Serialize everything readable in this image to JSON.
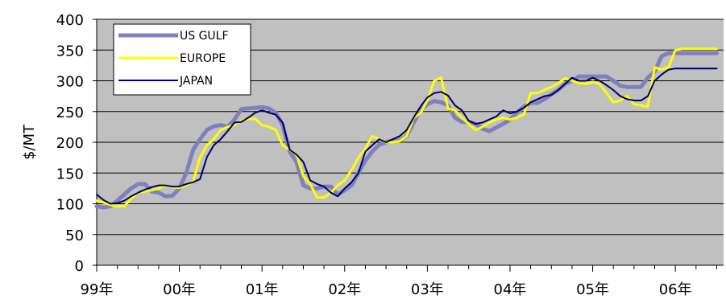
{
  "chart_data": {
    "type": "line",
    "title": "",
    "xlabel": "",
    "ylabel": "$/MT",
    "ylim": [
      0,
      400
    ],
    "yticks": [
      0,
      50,
      100,
      150,
      200,
      250,
      300,
      350,
      400
    ],
    "xlim": [
      0,
      91
    ],
    "xticks": [
      {
        "label": "99年",
        "month": 0
      },
      {
        "label": "00年",
        "month": 12
      },
      {
        "label": "01年",
        "month": 24
      },
      {
        "label": "02年",
        "month": 36
      },
      {
        "label": "03年",
        "month": 48
      },
      {
        "label": "04年",
        "month": 60
      },
      {
        "label": "05年",
        "month": 72
      },
      {
        "label": "06年",
        "month": 84
      }
    ],
    "grid": "horizontal",
    "plot_background": "#c0c0c0",
    "legend_position": "top-left",
    "series": [
      {
        "name": "US GULF",
        "color": "#8080c0",
        "width": 5,
        "x": [
          0,
          1,
          2,
          3,
          4,
          5,
          6,
          7,
          8,
          9,
          10,
          11,
          12,
          13,
          14,
          15,
          16,
          17,
          18,
          19,
          20,
          21,
          22,
          23,
          24,
          25,
          26,
          27,
          28,
          29,
          30,
          31,
          32,
          33,
          34,
          35,
          36,
          37,
          38,
          39,
          40,
          41,
          42,
          43,
          44,
          45,
          46,
          47,
          48,
          49,
          50,
          51,
          52,
          53,
          54,
          55,
          56,
          57,
          58,
          59,
          60,
          61,
          62,
          63,
          64,
          65,
          66,
          67,
          68,
          69,
          70,
          71,
          72,
          73,
          74,
          75,
          76,
          77,
          78,
          79,
          80,
          81,
          82,
          83,
          84,
          85,
          86,
          87,
          88,
          89,
          90
        ],
        "values": [
          96,
          94,
          96,
          105,
          115,
          125,
          132,
          132,
          120,
          118,
          112,
          113,
          125,
          150,
          188,
          205,
          220,
          226,
          228,
          225,
          237,
          254,
          255,
          256,
          257,
          255,
          248,
          228,
          185,
          168,
          130,
          125,
          125,
          128,
          128,
          115,
          122,
          130,
          150,
          170,
          185,
          196,
          200,
          203,
          203,
          210,
          232,
          252,
          262,
          267,
          265,
          260,
          240,
          233,
          233,
          230,
          222,
          218,
          224,
          230,
          237,
          248,
          258,
          264,
          264,
          270,
          278,
          285,
          295,
          300,
          307,
          307,
          307,
          307,
          307,
          300,
          292,
          290,
          290,
          290,
          305,
          315,
          340,
          345,
          345,
          345,
          345,
          345,
          345,
          345,
          345
        ]
      },
      {
        "name": "EUROPE",
        "color": "#ffff00",
        "width": 3,
        "x": [
          0,
          1,
          2,
          3,
          4,
          5,
          6,
          7,
          8,
          9,
          10,
          11,
          12,
          13,
          14,
          15,
          16,
          17,
          18,
          19,
          20,
          21,
          22,
          23,
          24,
          25,
          26,
          27,
          28,
          29,
          30,
          31,
          32,
          33,
          34,
          35,
          36,
          37,
          38,
          39,
          40,
          41,
          42,
          43,
          44,
          45,
          46,
          47,
          48,
          49,
          50,
          51,
          52,
          53,
          54,
          55,
          56,
          57,
          58,
          59,
          60,
          61,
          62,
          63,
          64,
          65,
          66,
          67,
          68,
          69,
          70,
          71,
          72,
          73,
          74,
          75,
          76,
          77,
          78,
          79,
          80,
          81,
          82,
          83,
          84,
          85,
          86,
          87,
          88,
          89,
          90
        ],
        "values": [
          105,
          102,
          98,
          96,
          96,
          108,
          118,
          120,
          122,
          125,
          130,
          127,
          126,
          130,
          136,
          175,
          195,
          205,
          220,
          225,
          228,
          235,
          238,
          238,
          228,
          225,
          220,
          195,
          188,
          180,
          145,
          132,
          110,
          110,
          118,
          130,
          138,
          155,
          175,
          190,
          210,
          205,
          200,
          200,
          202,
          210,
          240,
          247,
          268,
          300,
          305,
          255,
          252,
          240,
          230,
          220,
          225,
          232,
          237,
          240,
          237,
          240,
          245,
          280,
          280,
          285,
          290,
          296,
          304,
          300,
          296,
          295,
          298,
          295,
          280,
          265,
          268,
          275,
          262,
          260,
          258,
          322,
          318,
          322,
          350,
          352,
          352,
          352,
          352,
          352,
          352
        ]
      },
      {
        "name": "JAPAN",
        "color": "#000066",
        "width": 2,
        "x": [
          0,
          1,
          2,
          3,
          4,
          5,
          6,
          7,
          8,
          9,
          10,
          11,
          12,
          13,
          14,
          15,
          16,
          17,
          18,
          19,
          20,
          21,
          22,
          23,
          24,
          25,
          26,
          27,
          28,
          29,
          30,
          31,
          32,
          33,
          34,
          35,
          36,
          37,
          38,
          39,
          40,
          41,
          42,
          43,
          44,
          45,
          46,
          47,
          48,
          49,
          50,
          51,
          52,
          53,
          54,
          55,
          56,
          57,
          58,
          59,
          60,
          61,
          62,
          63,
          64,
          65,
          66,
          67,
          68,
          69,
          70,
          71,
          72,
          73,
          74,
          75,
          76,
          77,
          78,
          79,
          80,
          81,
          82,
          83,
          84,
          85,
          86,
          87,
          88,
          89,
          90
        ],
        "values": [
          115,
          106,
          100,
          101,
          105,
          112,
          118,
          123,
          127,
          130,
          130,
          128,
          128,
          132,
          135,
          140,
          176,
          195,
          205,
          218,
          232,
          233,
          240,
          248,
          252,
          248,
          245,
          232,
          188,
          180,
          168,
          138,
          132,
          128,
          118,
          112,
          125,
          135,
          150,
          185,
          195,
          205,
          200,
          205,
          210,
          220,
          240,
          258,
          273,
          280,
          282,
          276,
          260,
          252,
          235,
          230,
          232,
          237,
          242,
          252,
          247,
          250,
          256,
          265,
          270,
          275,
          277,
          285,
          295,
          305,
          300,
          300,
          305,
          300,
          293,
          285,
          275,
          270,
          268,
          268,
          275,
          300,
          310,
          318,
          320,
          320,
          320,
          320,
          320,
          320,
          320
        ]
      }
    ]
  }
}
